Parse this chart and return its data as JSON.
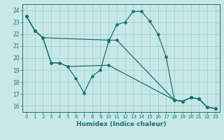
{
  "xlabel": "Humidex (Indice chaleur)",
  "bg_color": "#c8e8e8",
  "line_color": "#1a7070",
  "grid_color": "#99cccc",
  "ylim": [
    15.5,
    24.5
  ],
  "xlim": [
    -0.5,
    23.5
  ],
  "yticks": [
    16,
    17,
    18,
    19,
    20,
    21,
    22,
    23,
    24
  ],
  "xticks": [
    0,
    1,
    2,
    3,
    4,
    5,
    6,
    7,
    8,
    9,
    10,
    11,
    12,
    13,
    14,
    15,
    16,
    17,
    18,
    19,
    20,
    21,
    22,
    23
  ],
  "line1_x": [
    0,
    1,
    2,
    3,
    4,
    5,
    6,
    7,
    8,
    9,
    10,
    11,
    12,
    13,
    14,
    15,
    16,
    17,
    18,
    19,
    20,
    21,
    22,
    23
  ],
  "line1_y": [
    23.5,
    22.3,
    21.7,
    19.6,
    19.6,
    19.3,
    18.3,
    17.1,
    18.5,
    19.0,
    21.4,
    22.8,
    23.0,
    23.9,
    23.9,
    23.1,
    22.0,
    20.1,
    16.5,
    16.4,
    16.7,
    16.6,
    15.9,
    15.8
  ],
  "line2_x": [
    0,
    1,
    2,
    10,
    11,
    18,
    19,
    20,
    21,
    22,
    23
  ],
  "line2_y": [
    23.5,
    22.3,
    21.7,
    21.5,
    21.5,
    16.5,
    16.4,
    16.7,
    16.6,
    15.9,
    15.8
  ],
  "line3_x": [
    0,
    1,
    2,
    3,
    4,
    5,
    10,
    18,
    19,
    20,
    21,
    22,
    23
  ],
  "line3_y": [
    23.5,
    22.3,
    21.7,
    19.6,
    19.6,
    19.3,
    19.4,
    16.5,
    16.4,
    16.7,
    16.6,
    15.9,
    15.8
  ]
}
